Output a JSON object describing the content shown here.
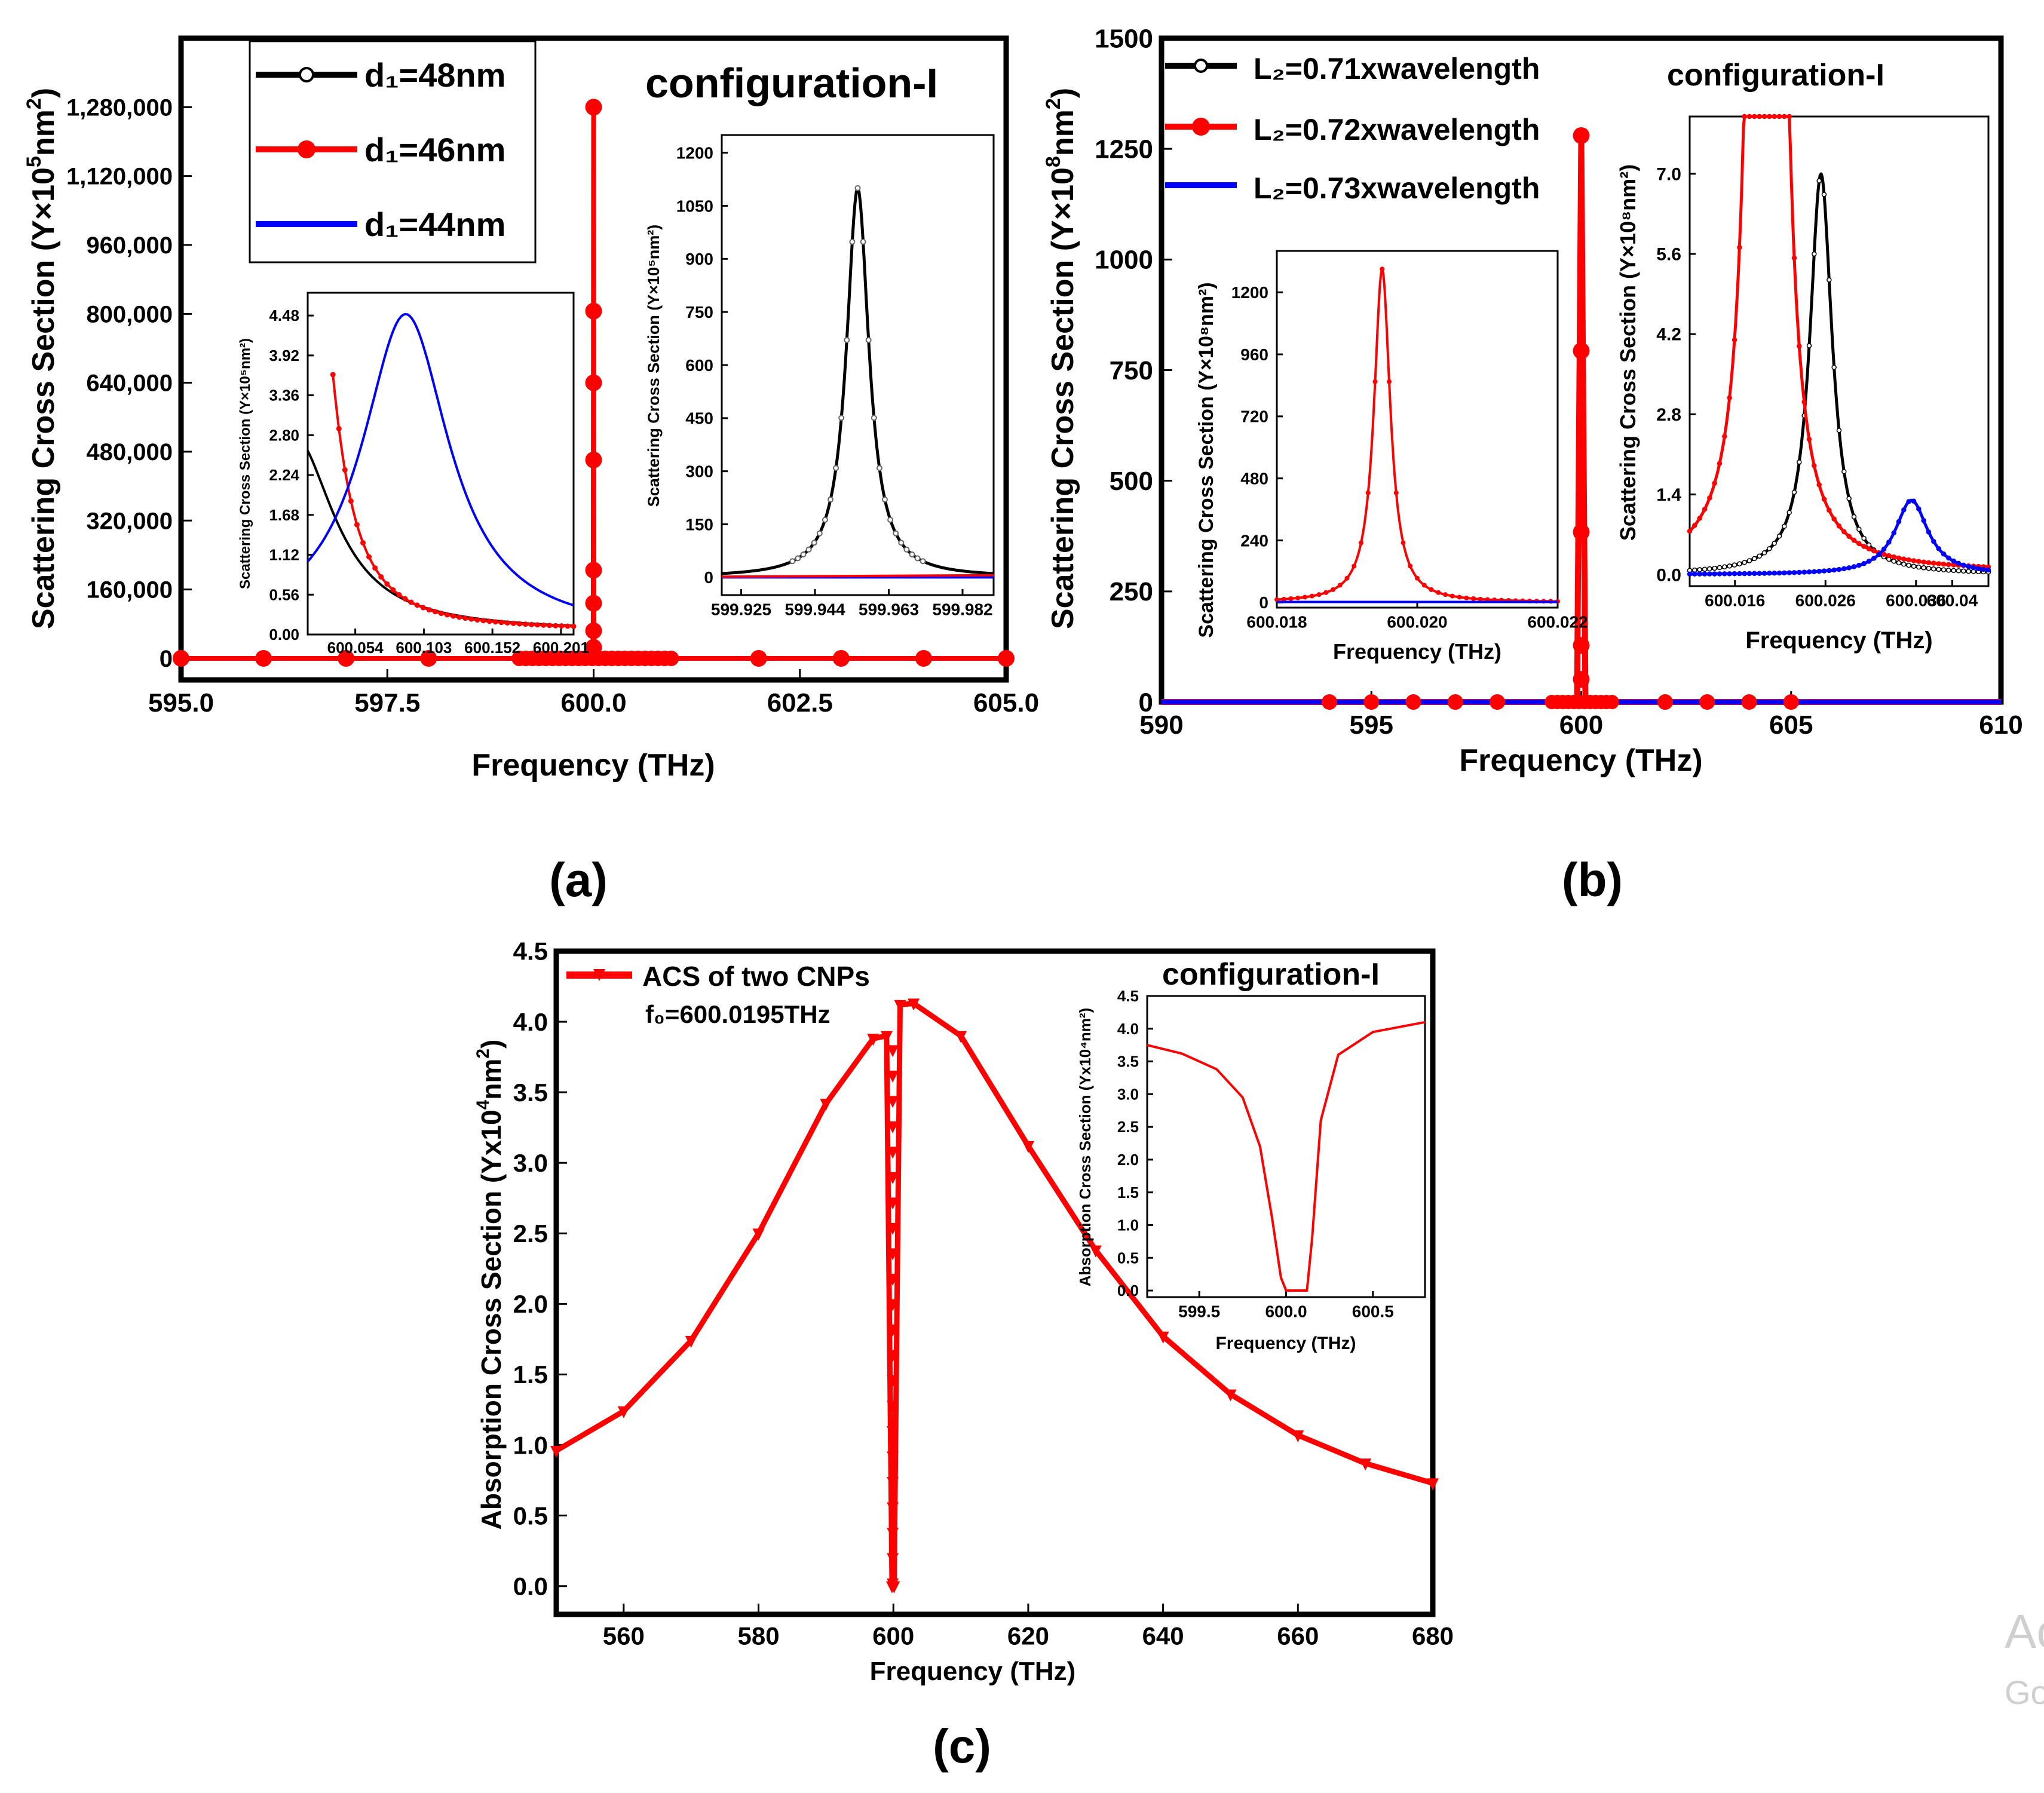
{
  "chart_data": [
    {
      "id": "a",
      "panel_label": "(a)",
      "type": "line",
      "annotation": "configuration-I",
      "xlabel": "Frequency (THz)",
      "ylabel_parts": [
        "Scattering Cross Section (Y×10",
        "5",
        "nm",
        "2",
        ")"
      ],
      "xlim": [
        595.0,
        605.0
      ],
      "ylim": [
        -50000,
        1440000
      ],
      "xticks": [
        "595.0",
        "597.5",
        "600.0",
        "602.5",
        "605.0"
      ],
      "yticks": [
        "0",
        "160,000",
        "320,000",
        "480,000",
        "640,000",
        "800,000",
        "960,000",
        "1,120,000",
        "1,280,000"
      ],
      "legend": [
        "d₁=48nm",
        "d₁=46nm",
        "d₁=44nm"
      ],
      "series": [
        {
          "name": "d1=48nm",
          "color": "#000000",
          "f0": 599.955,
          "peak": 1100,
          "width": 0.004,
          "marker": "o"
        },
        {
          "name": "d1=46nm",
          "color": "#ff0000",
          "f0": 600.0,
          "peak": 1280000,
          "width": 0.001,
          "marker": "o"
        },
        {
          "name": "d1=44nm",
          "color": "#0000ff",
          "f0": 600.09,
          "peak": 4.5,
          "width": 0.04,
          "marker": "."
        }
      ],
      "inset_left": {
        "ylabel": "Scattering Cross Section (Y×10⁵nm²)",
        "xlim": [
          600.02,
          600.21
        ],
        "ylim": [
          0,
          4.8
        ],
        "xticks": [
          "600.054",
          "600.103",
          "600.152",
          "600.201"
        ],
        "yticks": [
          "0.00",
          "0.56",
          "1.12",
          "1.68",
          "2.24",
          "2.80",
          "3.36",
          "3.92",
          "4.48"
        ]
      },
      "inset_right": {
        "ylabel": "Scattering Cross Section (Y×10⁵nm²)",
        "xlim": [
          599.92,
          599.99
        ],
        "ylim": [
          -50,
          1250
        ],
        "xticks": [
          "599.925",
          "599.944",
          "599.963",
          "599.982"
        ],
        "yticks": [
          "0",
          "150",
          "300",
          "450",
          "600",
          "750",
          "900",
          "1050",
          "1200"
        ]
      }
    },
    {
      "id": "b",
      "panel_label": "(b)",
      "type": "line",
      "annotation": "configuration-I",
      "xlabel": "Frequency (THz)",
      "ylabel_parts": [
        "Scattering Cross Section (Y×10",
        "8",
        "nm",
        "2",
        ")"
      ],
      "xlim": [
        590,
        610
      ],
      "ylim": [
        0,
        1500
      ],
      "xticks": [
        "590",
        "595",
        "600",
        "605",
        "610"
      ],
      "yticks": [
        "0",
        "250",
        "500",
        "750",
        "1000",
        "1250",
        "1500"
      ],
      "legend": [
        "L₂=0.71xwavelength",
        "L₂=0.72xwavelength",
        "L₂=0.73xwavelength"
      ],
      "series": [
        {
          "name": "L2=0.71xwavelength",
          "color": "#000000",
          "f0": 600.0255,
          "peak": 7.0,
          "width": 0.0015
        },
        {
          "name": "L2=0.72xwavelength",
          "color": "#ff0000",
          "f0": 600.0195,
          "peak": 1280,
          "width": 0.0002
        },
        {
          "name": "L2=0.73xwavelength",
          "color": "#0000ff",
          "f0": 600.0355,
          "peak": 1.3,
          "width": 0.0022
        }
      ],
      "inset_left": {
        "ylabel": "Scattering Cross Section (Y×10⁸nm²)",
        "xlabel": "Frequency (THz)",
        "xlim": [
          600.018,
          600.022
        ],
        "ylim": [
          -20,
          1360
        ],
        "xticks": [
          "600.018",
          "600.020",
          "600.022"
        ],
        "yticks": [
          "0",
          "240",
          "480",
          "720",
          "960",
          "1200"
        ]
      },
      "inset_right": {
        "ylabel": "Scattering Cross Section (Y×10⁸nm²)",
        "xlabel": "Frequency (THz)",
        "xlim": [
          600.011,
          600.044
        ],
        "ylim": [
          -0.2,
          8.0
        ],
        "xticks": [
          "600.016",
          "600.026",
          "600.036",
          "600.04"
        ],
        "yticks": [
          "0.0",
          "1.4",
          "2.8",
          "4.2",
          "5.6",
          "7.0"
        ]
      }
    },
    {
      "id": "c",
      "panel_label": "(c)",
      "type": "line",
      "annotation": "configuration-I",
      "xlabel": "Frequency (THz)",
      "ylabel_parts": [
        "Absorption Cross Section (Yx10",
        "4",
        "nm",
        "2",
        ")"
      ],
      "xlim": [
        550,
        680
      ],
      "ylim": [
        -0.2,
        4.5
      ],
      "xticks": [
        "560",
        "580",
        "600",
        "620",
        "640",
        "660",
        "680"
      ],
      "yticks": [
        "0.0",
        "0.5",
        "1.0",
        "1.5",
        "2.0",
        "2.5",
        "3.0",
        "3.5",
        "4.0",
        "4.5"
      ],
      "legend": [
        "ACS of two CNPs"
      ],
      "legend_sub": "f₀=600.0195THz",
      "series": [
        {
          "name": "ACS of two CNPs",
          "color": "#ff0000",
          "x": [
            550,
            560,
            570,
            580,
            590,
            597,
            599,
            599.8,
            600.1,
            601,
            603,
            610,
            620,
            630,
            640,
            650,
            660,
            670,
            680
          ],
          "y": [
            0.96,
            1.24,
            1.74,
            2.5,
            3.42,
            3.88,
            3.9,
            0.0,
            0.0,
            4.12,
            4.13,
            3.9,
            3.12,
            2.38,
            1.77,
            1.36,
            1.07,
            0.87,
            0.73
          ]
        }
      ],
      "inset": {
        "ylabel": "Absorption Cross Section (Yx10⁴nm²)",
        "xlabel": "Frequency (THz)",
        "xlim": [
          599.2,
          600.8
        ],
        "ylim": [
          -0.1,
          4.5
        ],
        "xticks": [
          "599.5",
          "600.0",
          "600.5"
        ],
        "yticks": [
          "0.0",
          "0.5",
          "1.0",
          "1.5",
          "2.0",
          "2.5",
          "3.0",
          "3.5",
          "4.0",
          "4.5"
        ],
        "x": [
          599.2,
          599.4,
          599.6,
          599.75,
          599.85,
          599.92,
          599.97,
          600.0,
          600.08,
          600.12,
          600.15,
          600.2,
          600.3,
          600.5,
          600.8
        ],
        "y": [
          3.75,
          3.62,
          3.38,
          2.95,
          2.2,
          1.1,
          0.2,
          0.0,
          0.0,
          0.0,
          0.8,
          2.6,
          3.6,
          3.95,
          4.1
        ]
      }
    }
  ],
  "watermark": {
    "line1": "Ac",
    "line2": "Go"
  }
}
